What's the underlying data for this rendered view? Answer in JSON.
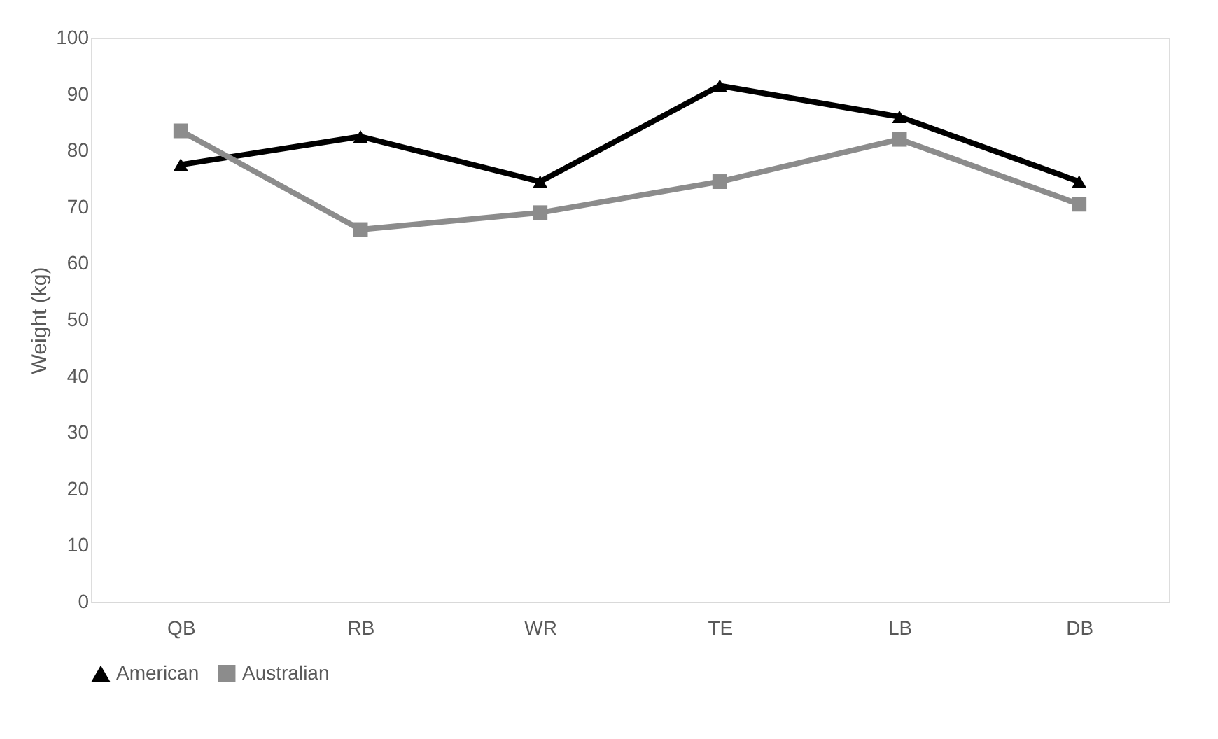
{
  "chart_data": {
    "type": "line",
    "ylabel": "Weight (kg)",
    "categories": [
      "QB",
      "RB",
      "WR",
      "TE",
      "LB",
      "DB"
    ],
    "series": [
      {
        "name": "American",
        "color": "#000000",
        "marker": "triangle",
        "values": [
          77.5,
          82.5,
          74.5,
          91.5,
          86,
          74.5
        ]
      },
      {
        "name": "Australian",
        "color": "#8c8c8c",
        "marker": "square",
        "values": [
          83.5,
          66,
          69,
          74.5,
          82,
          70.5
        ]
      }
    ],
    "ylim": [
      0,
      100
    ],
    "yticks": [
      0,
      10,
      20,
      30,
      40,
      50,
      60,
      70,
      80,
      90,
      100
    ],
    "grid": false,
    "legend": "bottom",
    "line_style": "solid"
  }
}
